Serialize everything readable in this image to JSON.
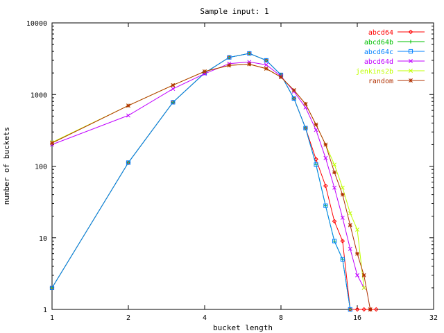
{
  "chart_data": {
    "type": "line",
    "title": "Sample input: 1",
    "xlabel": "bucket length",
    "ylabel": "number of buckets",
    "x_scale": "log2",
    "y_scale": "log10",
    "xlim": [
      1,
      32
    ],
    "ylim": [
      1,
      10000
    ],
    "x_ticks": [
      1,
      2,
      4,
      8,
      16,
      32
    ],
    "x_tick_labels": [
      "1",
      "2",
      "4",
      "8",
      "16",
      "32"
    ],
    "y_ticks": [
      1,
      10,
      100,
      1000,
      10000
    ],
    "y_tick_labels": [
      "1",
      "10",
      "100",
      "1000",
      "10000"
    ],
    "grid": false,
    "legend_position": "top-right",
    "series": [
      {
        "name": "abcd64",
        "color": "#ff0000",
        "marker": "diamond",
        "points": [
          [
            1,
            2
          ],
          [
            2,
            112
          ],
          [
            3,
            780
          ],
          [
            4,
            2000
          ],
          [
            5,
            3300
          ],
          [
            6,
            3750
          ],
          [
            7,
            3000
          ],
          [
            8,
            1880
          ],
          [
            9,
            880
          ],
          [
            10,
            340
          ],
          [
            11,
            125
          ],
          [
            12,
            53
          ],
          [
            13,
            17
          ],
          [
            14,
            9
          ],
          [
            15,
            1
          ],
          [
            16,
            1
          ],
          [
            17,
            1
          ],
          [
            18,
            1
          ],
          [
            19,
            1
          ]
        ]
      },
      {
        "name": "abcd64b",
        "color": "#00c000",
        "marker": "plus",
        "points": [
          [
            1,
            2
          ],
          [
            2,
            112
          ],
          [
            3,
            780
          ],
          [
            4,
            2000
          ],
          [
            5,
            3300
          ],
          [
            6,
            3750
          ],
          [
            7,
            3000
          ],
          [
            8,
            1880
          ],
          [
            9,
            880
          ],
          [
            10,
            340
          ],
          [
            11,
            105
          ],
          [
            12,
            28
          ],
          [
            13,
            9
          ],
          [
            14,
            5
          ],
          [
            15,
            1
          ]
        ]
      },
      {
        "name": "abcd64c",
        "color": "#0080ff",
        "marker": "square",
        "points": [
          [
            1,
            2
          ],
          [
            2,
            112
          ],
          [
            3,
            780
          ],
          [
            4,
            2000
          ],
          [
            5,
            3300
          ],
          [
            6,
            3750
          ],
          [
            7,
            3000
          ],
          [
            8,
            1880
          ],
          [
            9,
            880
          ],
          [
            10,
            340
          ],
          [
            11,
            105
          ],
          [
            12,
            28
          ],
          [
            13,
            9
          ],
          [
            14,
            5
          ],
          [
            15,
            1
          ]
        ]
      },
      {
        "name": "abcd64d",
        "color": "#c000ff",
        "marker": "cross",
        "points": [
          [
            1,
            200
          ],
          [
            2,
            510
          ],
          [
            3,
            1200
          ],
          [
            4,
            1950
          ],
          [
            5,
            2700
          ],
          [
            6,
            2850
          ],
          [
            7,
            2600
          ],
          [
            8,
            1800
          ],
          [
            9,
            1100
          ],
          [
            10,
            660
          ],
          [
            11,
            320
          ],
          [
            12,
            130
          ],
          [
            13,
            50
          ],
          [
            14,
            19
          ],
          [
            15,
            7
          ],
          [
            16,
            3
          ],
          [
            17,
            2
          ]
        ]
      },
      {
        "name": "jenkins2b",
        "color": "#c0ff00",
        "marker": "cross",
        "points": [
          [
            1,
            215
          ],
          [
            2,
            700
          ],
          [
            3,
            1350
          ],
          [
            4,
            2100
          ],
          [
            5,
            2550
          ],
          [
            6,
            2650
          ],
          [
            7,
            2300
          ],
          [
            8,
            1750
          ],
          [
            9,
            1150
          ],
          [
            10,
            740
          ],
          [
            11,
            380
          ],
          [
            12,
            200
          ],
          [
            13,
            105
          ],
          [
            14,
            50
          ],
          [
            15,
            22
          ],
          [
            16,
            13
          ],
          [
            17,
            2
          ]
        ]
      },
      {
        "name": "random",
        "color": "#b03000",
        "marker": "star",
        "points": [
          [
            1,
            210
          ],
          [
            2,
            700
          ],
          [
            3,
            1350
          ],
          [
            4,
            2100
          ],
          [
            5,
            2550
          ],
          [
            6,
            2650
          ],
          [
            7,
            2300
          ],
          [
            8,
            1750
          ],
          [
            9,
            1150
          ],
          [
            10,
            740
          ],
          [
            11,
            380
          ],
          [
            12,
            200
          ],
          [
            13,
            82
          ],
          [
            14,
            40
          ],
          [
            15,
            15
          ],
          [
            16,
            6
          ],
          [
            17,
            3
          ],
          [
            18,
            1
          ]
        ]
      }
    ]
  }
}
